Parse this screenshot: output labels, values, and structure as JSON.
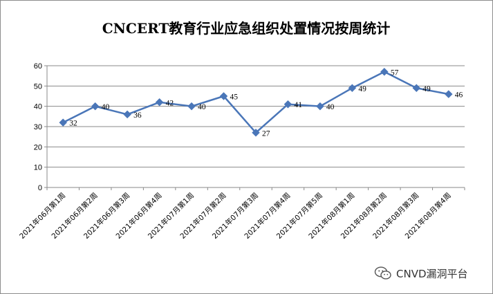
{
  "chart_data": {
    "type": "line",
    "title": "CNCERT教育行业应急组织处置情况按周统计",
    "categories": [
      "2021年06月第1周",
      "2021年06月第2周",
      "2021年06月第3周",
      "2021年06月第4周",
      "2021年07月第1周",
      "2021年07月第2周",
      "2021年07月第3周",
      "2021年07月第4周",
      "2021年07月第5周",
      "2021年08月第1周",
      "2021年08月第2周",
      "2021年08月第3周",
      "2021年08月第4周"
    ],
    "series": [
      {
        "values": [
          32,
          40,
          36,
          42,
          40,
          45,
          27,
          41,
          40,
          49,
          57,
          49,
          46
        ]
      }
    ],
    "ylim": [
      0,
      60
    ],
    "yticks": [
      0,
      10,
      20,
      30,
      40,
      50,
      60
    ],
    "grid": true,
    "legend": "none",
    "line_color": "#4a76b8"
  },
  "watermark": {
    "text": "CNVD漏洞平台",
    "icon": "wechat-icon"
  }
}
